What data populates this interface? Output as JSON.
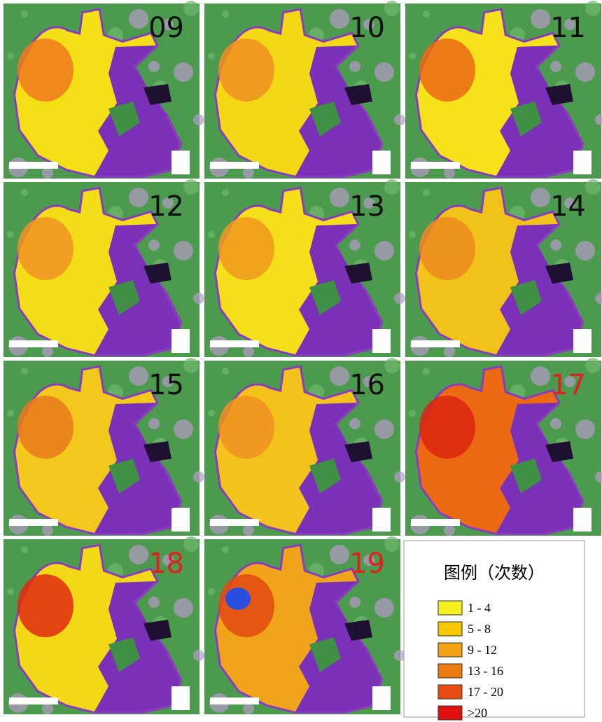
{
  "panels": [
    {
      "label": "09",
      "label_color": "#111111",
      "fill": "#f3df16",
      "accent": "#ef7a1c"
    },
    {
      "label": "10",
      "label_color": "#111111",
      "fill": "#f3d816",
      "accent": "#ee9020"
    },
    {
      "label": "11",
      "label_color": "#111111",
      "fill": "#f5e21a",
      "accent": "#eb6a18"
    },
    {
      "label": "12",
      "label_color": "#111111",
      "fill": "#f3dc18",
      "accent": "#ee9422"
    },
    {
      "label": "13",
      "label_color": "#111111",
      "fill": "#f5df1a",
      "accent": "#ef9a20"
    },
    {
      "label": "14",
      "label_color": "#111111",
      "fill": "#f0c21a",
      "accent": "#ec8a1e"
    },
    {
      "label": "15",
      "label_color": "#111111",
      "fill": "#f2c81c",
      "accent": "#ea7a1c"
    },
    {
      "label": "16",
      "label_color": "#111111",
      "fill": "#f3c21c",
      "accent": "#ee9020"
    },
    {
      "label": "17",
      "label_color": "#e02020",
      "fill": "#ec6a14",
      "accent": "#dc2410"
    },
    {
      "label": "18",
      "label_color": "#e02020",
      "fill": "#f3d818",
      "accent": "#e02a10"
    },
    {
      "label": "19",
      "label_color": "#e02020",
      "fill": "#f0a41c",
      "accent": "#e04a12",
      "patch": "#2a4ee0"
    }
  ],
  "legend": {
    "title": "图例（次数）",
    "items": [
      {
        "label": "1 - 4",
        "color": "#f6f020"
      },
      {
        "label": "5 - 8",
        "color": "#f5c800"
      },
      {
        "label": "9 - 12",
        "color": "#f2a212"
      },
      {
        "label": "13 - 16",
        "color": "#ee7a12"
      },
      {
        "label": "17 - 20",
        "color": "#e84c12"
      },
      {
        "label": ">20",
        "color": "#e01010"
      }
    ]
  }
}
